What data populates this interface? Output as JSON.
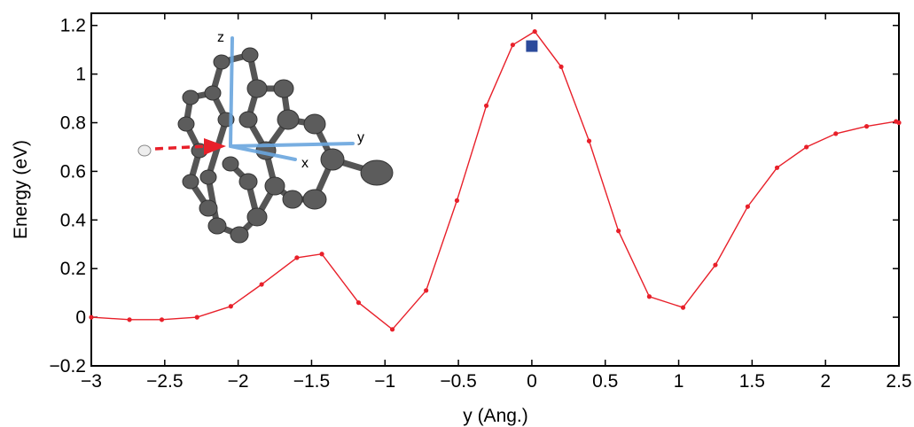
{
  "chart_data": {
    "type": "line",
    "xlabel": "y (Ang.)",
    "ylabel": "Energy (eV)",
    "xlim": [
      -3,
      2.5
    ],
    "ylim": [
      -0.2,
      1.25
    ],
    "xticks": [
      -3,
      -2.5,
      -2,
      -1.5,
      -1,
      -0.5,
      0,
      0.5,
      1,
      1.5,
      2,
      2.5
    ],
    "xtick_labels": [
      "−3",
      "−2.5",
      "−2",
      "−1.5",
      "−1",
      "−0.5",
      "0",
      "0.5",
      "1",
      "1.5",
      "2",
      "2.5"
    ],
    "yticks": [
      -0.2,
      0,
      0.2,
      0.4,
      0.6,
      0.8,
      1,
      1.2
    ],
    "ytick_labels": [
      "−0.2",
      "0",
      "0.2",
      "0.4",
      "0.6",
      "0.8",
      "1",
      "1.2"
    ],
    "grid": false,
    "series": [
      {
        "color": "#e8202a",
        "marker": "dot",
        "x": [
          -3.0,
          -2.74,
          -2.52,
          -2.28,
          -2.05,
          -1.84,
          -1.6,
          -1.43,
          -1.18,
          -0.95,
          -0.72,
          -0.51,
          -0.31,
          -0.13,
          0.02,
          0.2,
          0.39,
          0.59,
          0.8,
          1.03,
          1.25,
          1.47,
          1.67,
          1.87,
          2.07,
          2.28,
          2.48,
          2.5
        ],
        "y": [
          0.0,
          -0.01,
          -0.01,
          0.0,
          0.045,
          0.135,
          0.245,
          0.26,
          0.06,
          -0.05,
          0.11,
          0.48,
          0.87,
          1.12,
          1.175,
          1.03,
          0.725,
          0.355,
          0.085,
          0.04,
          0.215,
          0.455,
          0.615,
          0.7,
          0.755,
          0.785,
          0.805,
          0.8
        ]
      }
    ],
    "extra_points": [
      {
        "x": 0.0,
        "y": 1.115,
        "marker": "square",
        "color": "#2b4a9b"
      }
    ],
    "inset_axis_labels": [
      "z",
      "y",
      "x"
    ]
  }
}
